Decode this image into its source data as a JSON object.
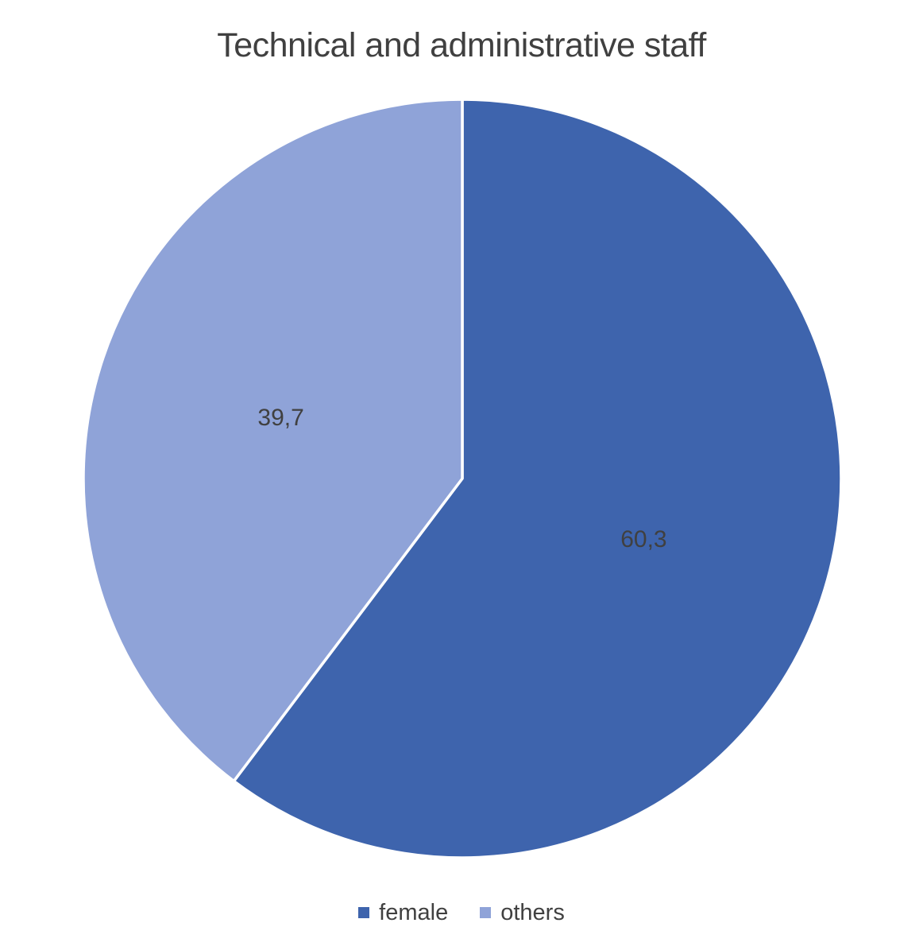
{
  "chart_data": {
    "type": "pie",
    "title": "Technical and administrative staff",
    "slices": [
      {
        "label": "female",
        "value": 60.3,
        "display": "60,3",
        "color": "#3E64AD"
      },
      {
        "label": "others",
        "value": 39.7,
        "display": "39,7",
        "color": "#8FA3D8"
      }
    ],
    "start_angle_deg": 0,
    "direction": "clockwise",
    "legend_position": "bottom",
    "data_label_position": "center",
    "label_color": "#404040",
    "divider_color": "#FFFFFF",
    "background_color": "#FFFFFF"
  }
}
